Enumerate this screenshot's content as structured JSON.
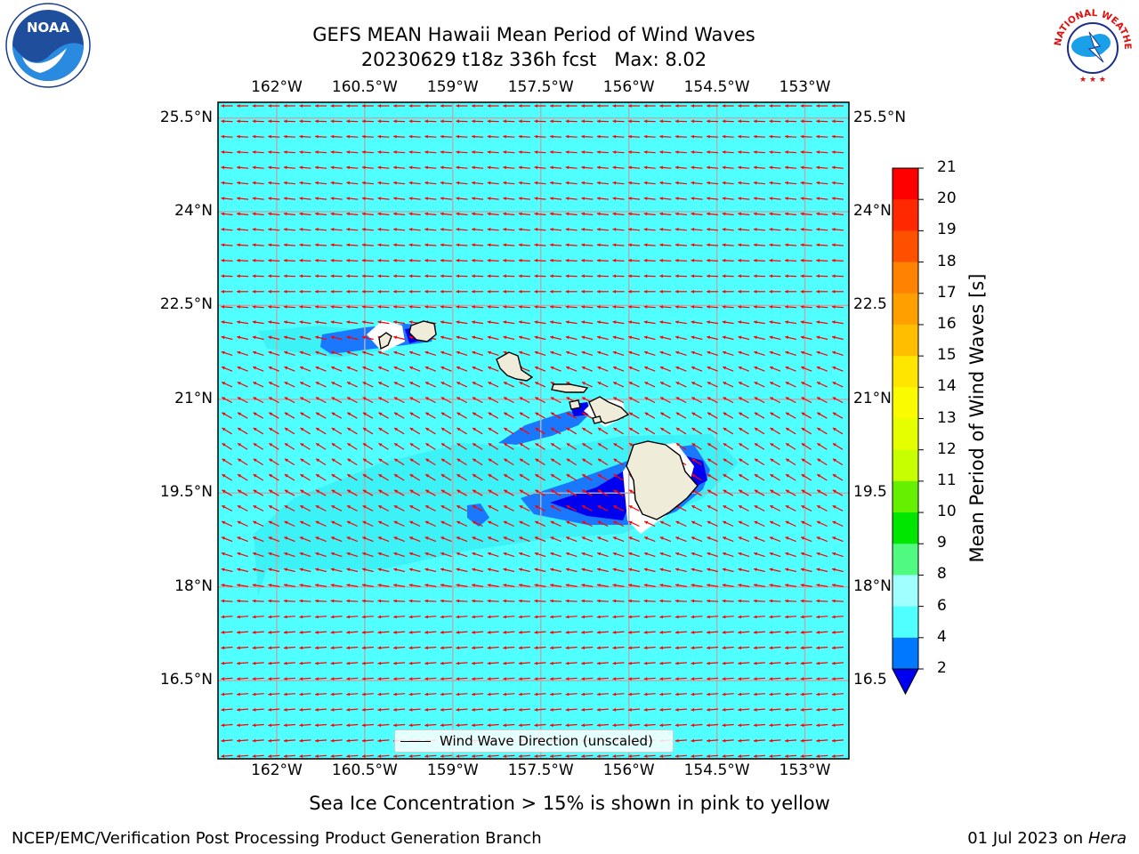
{
  "title": {
    "line1": "GEFS MEAN Hawaii Mean Period of Wind Waves",
    "line2": "20230629 t18z 336h fcst   Max: 8.02"
  },
  "subtitle": "Sea Ice Concentration > 15% is shown in pink to yellow",
  "footer": {
    "left": "NCEP/EMC/Verification Post Processing Product Generation Branch",
    "right_date": "01 Jul 2023 on ",
    "right_host": "Hera"
  },
  "logos": {
    "noaa_text": "NOAA",
    "nws_text": "NATIONAL WEATHER SERVICE"
  },
  "map": {
    "lon_labels": [
      "162°W",
      "160.5°W",
      "159°W",
      "157.5°W",
      "156°W",
      "154.5°W",
      "153°W"
    ],
    "lat_labels_left": [
      "25.5°N",
      "24°N",
      "22.5°N",
      "21°N",
      "19.5°N",
      "18°N",
      "16.5°N"
    ],
    "lat_labels_right": [
      "25.5°N",
      "24°N",
      "22.5",
      "21°N",
      "19.5",
      "18°N",
      "16.5"
    ],
    "lon_values": [
      -162,
      -160.5,
      -159,
      -157.5,
      -156,
      -154.5,
      -153
    ],
    "lat_values": [
      25.5,
      24,
      22.5,
      21,
      19.5,
      18,
      16.5
    ],
    "extent": {
      "lon_min": -163.0,
      "lon_max": -152.25,
      "lat_min": 15.25,
      "lat_max": 25.75
    },
    "ocean_color": "#50ffff",
    "land_color": "#efecda",
    "arrow_color": "#ff0000",
    "legend_label": "Wind Wave Direction (unscaled)"
  },
  "colorbar": {
    "label": "Mean Period of Wind Waves [s]",
    "ticks": [
      21,
      20,
      19,
      18,
      17,
      16,
      15,
      14,
      13,
      12,
      11,
      10,
      9,
      8,
      6,
      4,
      2
    ],
    "colors": [
      "#ff0000",
      "#ff2800",
      "#ff5000",
      "#ff8200",
      "#ffa000",
      "#ffbe00",
      "#ffe600",
      "#fafa00",
      "#e6ff00",
      "#c8ff00",
      "#64f000",
      "#00e600",
      "#00f000",
      "#50fa80",
      "#a0ffff",
      "#50ffff",
      "#00ffff",
      "#0078ff"
    ],
    "under_color": "#0000f0"
  }
}
